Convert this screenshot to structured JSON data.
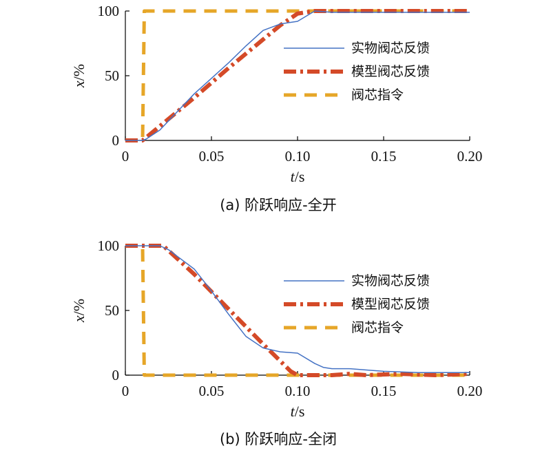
{
  "chart_data": [
    {
      "type": "line",
      "caption": "(a) 阶跃响应-全开",
      "xlabel": "t/s",
      "ylabel": "x/%",
      "xlim": [
        0,
        0.2
      ],
      "ylim": [
        0,
        100
      ],
      "xticks": [
        "0",
        "0.05",
        "0.10",
        "0.15",
        "0.20"
      ],
      "yticks": [
        "0",
        "50",
        "100"
      ],
      "legend_position": "right",
      "series": [
        {
          "name": "实物阀芯反馈",
          "color": "#4472c4",
          "style": "solid",
          "x": [
            0,
            0.01,
            0.012,
            0.02,
            0.03,
            0.04,
            0.05,
            0.06,
            0.07,
            0.08,
            0.09,
            0.1,
            0.105,
            0.11,
            0.12,
            0.15,
            0.2
          ],
          "y": [
            0,
            0,
            1,
            8,
            22,
            36,
            48,
            60,
            73,
            85,
            90,
            92,
            96,
            100,
            99,
            99,
            99
          ]
        },
        {
          "name": "模型阀芯反馈",
          "color": "#d44a28",
          "style": "dashdot",
          "x": [
            0,
            0.01,
            0.02,
            0.04,
            0.06,
            0.08,
            0.09,
            0.1,
            0.11,
            0.13,
            0.15,
            0.18,
            0.2
          ],
          "y": [
            0,
            0,
            11,
            33,
            56,
            78,
            89,
            98,
            100,
            100,
            100,
            100,
            100
          ]
        },
        {
          "name": "阀芯指令",
          "color": "#e6a628",
          "style": "dashed",
          "x": [
            0,
            0.01,
            0.011,
            0.2
          ],
          "y": [
            0,
            0,
            100,
            100
          ]
        }
      ]
    },
    {
      "type": "line",
      "caption": "(b) 阶跃响应-全闭",
      "xlabel": "t/s",
      "ylabel": "x/%",
      "xlim": [
        0,
        0.2
      ],
      "ylim": [
        0,
        100
      ],
      "xticks": [
        "0",
        "0.05",
        "0.10",
        "0.15",
        "0.20"
      ],
      "yticks": [
        "0",
        "50",
        "100"
      ],
      "legend_position": "right",
      "series": [
        {
          "name": "实物阀芯反馈",
          "color": "#4472c4",
          "style": "solid",
          "x": [
            0,
            0.02,
            0.025,
            0.03,
            0.04,
            0.05,
            0.06,
            0.07,
            0.08,
            0.09,
            0.1,
            0.11,
            0.115,
            0.12,
            0.13,
            0.14,
            0.15,
            0.17,
            0.2
          ],
          "y": [
            100,
            100,
            97,
            92,
            82,
            65,
            47,
            30,
            21,
            18,
            17,
            9,
            6,
            5,
            5,
            4,
            3,
            2,
            2
          ]
        },
        {
          "name": "模型阀芯反馈",
          "color": "#d44a28",
          "style": "dashdot",
          "x": [
            0,
            0.022,
            0.04,
            0.06,
            0.08,
            0.096,
            0.1,
            0.12,
            0.13,
            0.14,
            0.16,
            0.18,
            0.2
          ],
          "y": [
            100,
            100,
            78,
            51,
            24,
            3,
            0,
            0,
            1,
            0,
            1,
            0,
            1
          ]
        },
        {
          "name": "阀芯指令",
          "color": "#e6a628",
          "style": "dashed",
          "x": [
            0,
            0.01,
            0.011,
            0.2
          ],
          "y": [
            100,
            100,
            0,
            0
          ]
        }
      ]
    }
  ]
}
